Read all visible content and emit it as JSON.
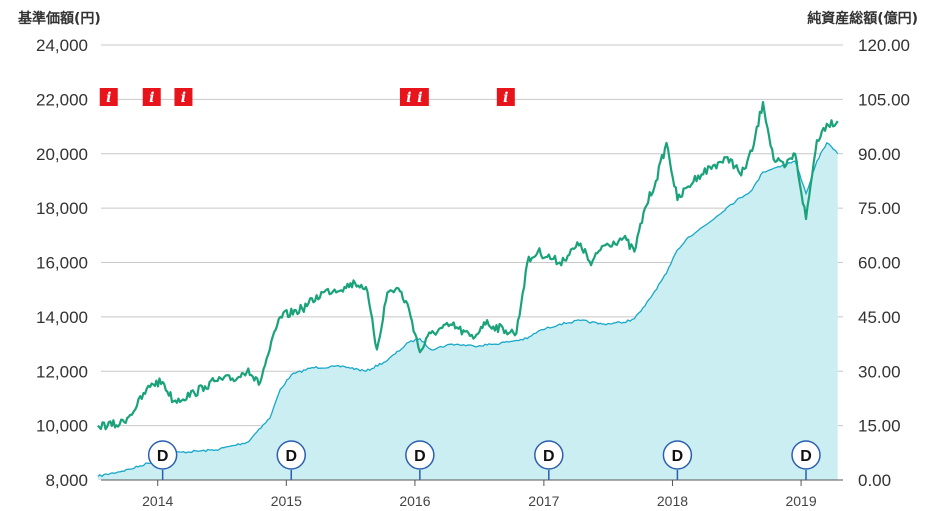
{
  "chart_data": {
    "type": "line",
    "left_axis_title": "基準価額(円)",
    "right_axis_title": "純資産総額(億円)",
    "left_ticks": [
      "24,000",
      "22,000",
      "20,000",
      "18,000",
      "16,000",
      "14,000",
      "12,000",
      "10,000",
      "8,000"
    ],
    "right_ticks": [
      "120.00",
      "105.00",
      "90.00",
      "75.00",
      "60.00",
      "45.00",
      "30.00",
      "15.00",
      "0.00"
    ],
    "x_ticks": [
      "2014",
      "2015",
      "2016",
      "2017",
      "2018",
      "2019"
    ],
    "x_range": [
      "2013-07-24",
      "2019-04-30"
    ],
    "ylim_left": [
      8000,
      24000
    ],
    "ylim_right": [
      0,
      120
    ],
    "grid": true,
    "series": [
      {
        "axis": "left",
        "kind": "line",
        "color": "#1aa37a",
        "x": [
          "2013-07",
          "2013-09",
          "2013-10",
          "2013-12",
          "2014-01",
          "2014-02",
          "2014-04",
          "2014-05",
          "2014-06",
          "2014-08",
          "2014-09",
          "2014-10",
          "2014-11",
          "2014-12",
          "2015-02",
          "2015-04",
          "2015-06",
          "2015-07",
          "2015-08",
          "2015-09",
          "2015-10",
          "2015-11",
          "2015-12",
          "2016-01",
          "2016-02",
          "2016-04",
          "2016-06",
          "2016-07",
          "2016-09",
          "2016-10",
          "2016-11",
          "2016-12",
          "2017-02",
          "2017-04",
          "2017-05",
          "2017-06",
          "2017-08",
          "2017-09",
          "2017-10",
          "2017-11",
          "2017-12",
          "2018-01",
          "2018-02",
          "2018-03",
          "2018-05",
          "2018-06",
          "2018-07",
          "2018-08",
          "2018-09",
          "2018-10",
          "2018-11",
          "2018-12",
          "2019-01",
          "2019-02",
          "2019-03",
          "2019-04"
        ],
        "values": [
          10000,
          10050,
          10400,
          11550,
          11600,
          10900,
          11200,
          11450,
          11650,
          11750,
          12100,
          11500,
          12800,
          14000,
          14300,
          14900,
          15100,
          15250,
          15100,
          12800,
          14900,
          15050,
          14300,
          12700,
          13400,
          13700,
          13200,
          13800,
          13500,
          13400,
          16000,
          16400,
          16000,
          16700,
          15900,
          16600,
          16900,
          16400,
          18000,
          19000,
          20400,
          18300,
          18800,
          19200,
          19700,
          19800,
          19200,
          20100,
          21900,
          19800,
          19500,
          20000,
          17600,
          20500,
          21100,
          21200
        ]
      },
      {
        "axis": "right",
        "kind": "area",
        "color": "#19a8c8",
        "fill": "#cbeef2",
        "x": [
          "2013-07",
          "2013-10",
          "2013-12",
          "2014-01",
          "2014-02",
          "2014-06",
          "2014-09",
          "2014-10",
          "2014-11",
          "2014-12",
          "2015-01",
          "2015-03",
          "2015-06",
          "2015-08",
          "2015-10",
          "2015-12",
          "2016-01",
          "2016-02",
          "2016-04",
          "2016-06",
          "2016-08",
          "2016-10",
          "2016-11",
          "2016-12",
          "2017-02",
          "2017-04",
          "2017-06",
          "2017-08",
          "2017-09",
          "2017-10",
          "2017-12",
          "2018-01",
          "2018-02",
          "2018-04",
          "2018-06",
          "2018-08",
          "2018-09",
          "2018-10",
          "2018-11",
          "2018-12",
          "2019-01",
          "2019-02",
          "2019-03",
          "2019-04"
        ],
        "values": [
          1.0,
          3.0,
          5.0,
          6.5,
          7.5,
          8.3,
          10.5,
          14.0,
          17.0,
          25.0,
          29.0,
          31.0,
          31.3,
          30.0,
          33.0,
          38.0,
          39.0,
          36.0,
          37.5,
          37.0,
          37.5,
          38.5,
          39.0,
          41.0,
          43.0,
          44.0,
          43.0,
          43.5,
          44.5,
          48.0,
          57.0,
          63.5,
          67.0,
          71.0,
          76.0,
          80.0,
          85.0,
          86.0,
          87.0,
          88.0,
          79.0,
          88.0,
          93.0,
          90.0
        ]
      }
    ],
    "info_markers": [
      {
        "date": "2013-08",
        "label": "i"
      },
      {
        "date": "2013-12",
        "label": "i"
      },
      {
        "date": "2014-03",
        "label": "i"
      },
      {
        "date": "2015-12",
        "label": "i"
      },
      {
        "date": "2016-01",
        "label": "i"
      },
      {
        "date": "2016-09",
        "label": "i"
      }
    ],
    "dividend_markers": [
      {
        "date": "2014-01",
        "label": "D"
      },
      {
        "date": "2015-01",
        "label": "D"
      },
      {
        "date": "2016-01",
        "label": "D"
      },
      {
        "date": "2017-01",
        "label": "D"
      },
      {
        "date": "2018-01",
        "label": "D"
      },
      {
        "date": "2019-01",
        "label": "D"
      }
    ]
  }
}
